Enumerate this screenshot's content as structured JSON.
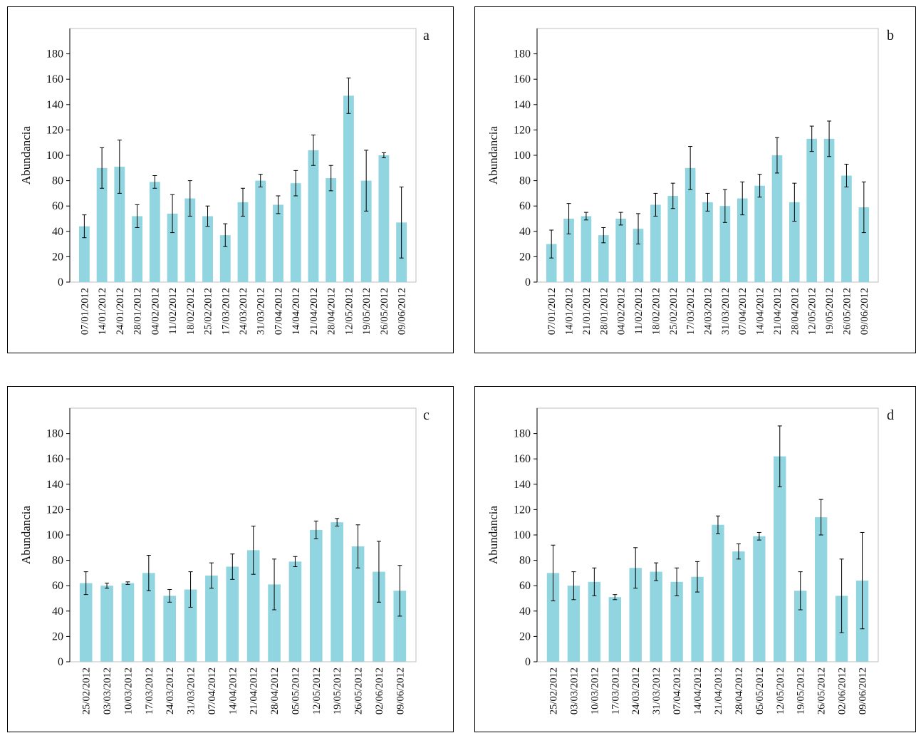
{
  "colors": {
    "bar": "#90d5df",
    "plot_border": "#bfbfbf",
    "error_bar": "#000000"
  },
  "chart_data": [
    {
      "type": "bar",
      "panel_label": "a",
      "ylabel": "Abundancia",
      "ylim": [
        0,
        200
      ],
      "yticks": [
        0,
        20,
        40,
        60,
        80,
        100,
        120,
        140,
        160,
        180
      ],
      "categories": [
        "07/01/2012",
        "14/01/2012",
        "24/01/2012",
        "28/01/2012",
        "04/02/2012",
        "11/02/2012",
        "18/02/2012",
        "25/02/2012",
        "17/03/2012",
        "24/03/2012",
        "31/03/2012",
        "07/04/2012",
        "14/04/2012",
        "21/04/2012",
        "28/04/2012",
        "12/05/2012",
        "19/05/2012",
        "26/05/2012",
        "09/06/2012"
      ],
      "values": [
        44,
        90,
        91,
        52,
        79,
        54,
        66,
        52,
        37,
        63,
        80,
        61,
        78,
        104,
        82,
        147,
        80,
        100,
        47
      ],
      "errors": [
        9,
        16,
        21,
        9,
        5,
        15,
        14,
        8,
        9,
        11,
        5,
        7,
        10,
        12,
        10,
        14,
        24,
        2,
        28
      ]
    },
    {
      "type": "bar",
      "panel_label": "b",
      "ylabel": "Abundancia",
      "ylim": [
        0,
        200
      ],
      "yticks": [
        0,
        20,
        40,
        60,
        80,
        100,
        120,
        140,
        160,
        180
      ],
      "categories": [
        "07/01/2012",
        "14/01/2012",
        "21/01/2012",
        "28/01/2012",
        "04/02/2012",
        "11/02/2012",
        "18/02/2012",
        "25/02/2012",
        "17/03/2012",
        "24/03/2012",
        "31/03/2012",
        "07/04/2012",
        "14/04/2012",
        "21/04/2012",
        "28/04/2012",
        "12/05/2012",
        "19/05/2012",
        "26/05/2012",
        "09/06/2012"
      ],
      "values": [
        30,
        50,
        52,
        37,
        50,
        42,
        61,
        68,
        90,
        63,
        60,
        66,
        76,
        100,
        63,
        113,
        113,
        84,
        59
      ],
      "errors": [
        11,
        12,
        3,
        6,
        5,
        12,
        9,
        10,
        17,
        7,
        13,
        13,
        9,
        14,
        15,
        10,
        14,
        9,
        20
      ]
    },
    {
      "type": "bar",
      "panel_label": "c",
      "ylabel": "Abundancia",
      "ylim": [
        0,
        200
      ],
      "yticks": [
        0,
        20,
        40,
        60,
        80,
        100,
        120,
        140,
        160,
        180
      ],
      "categories": [
        "25/02/2012",
        "03/03/2012",
        "10/03/2012",
        "17/03/2012",
        "24/03/2012",
        "31/03/2012",
        "07/04/2012",
        "14/04/2012",
        "21/04/2012",
        "28/04/2012",
        "05/05/2012",
        "12/05/2012",
        "19/05/2012",
        "26/05/2012",
        "02/06/2012",
        "09/06/2012"
      ],
      "values": [
        62,
        60,
        62,
        70,
        52,
        57,
        68,
        75,
        88,
        61,
        79,
        104,
        110,
        91,
        71,
        56
      ],
      "errors": [
        9,
        2,
        1,
        14,
        5,
        14,
        10,
        10,
        19,
        20,
        4,
        7,
        3,
        17,
        24,
        20
      ]
    },
    {
      "type": "bar",
      "panel_label": "d",
      "ylabel": "Abundancia",
      "ylim": [
        0,
        200
      ],
      "yticks": [
        0,
        20,
        40,
        60,
        80,
        100,
        120,
        140,
        160,
        180
      ],
      "categories": [
        "25/02/2012",
        "03/03/2012",
        "10/03/2012",
        "17/03/2012",
        "24/03/2012",
        "31/03/2012",
        "07/04/2012",
        "14/04/2012",
        "21/04/2012",
        "28/04/2012",
        "05/05/2012",
        "12/05/2012",
        "19/05/2012",
        "26/05/2012",
        "02/06/2012",
        "09/06/2012"
      ],
      "values": [
        70,
        60,
        63,
        51,
        74,
        71,
        63,
        67,
        108,
        87,
        99,
        162,
        56,
        114,
        52,
        64
      ],
      "errors": [
        22,
        11,
        11,
        2,
        16,
        7,
        11,
        12,
        7,
        6,
        3,
        24,
        15,
        14,
        29,
        38
      ]
    }
  ]
}
